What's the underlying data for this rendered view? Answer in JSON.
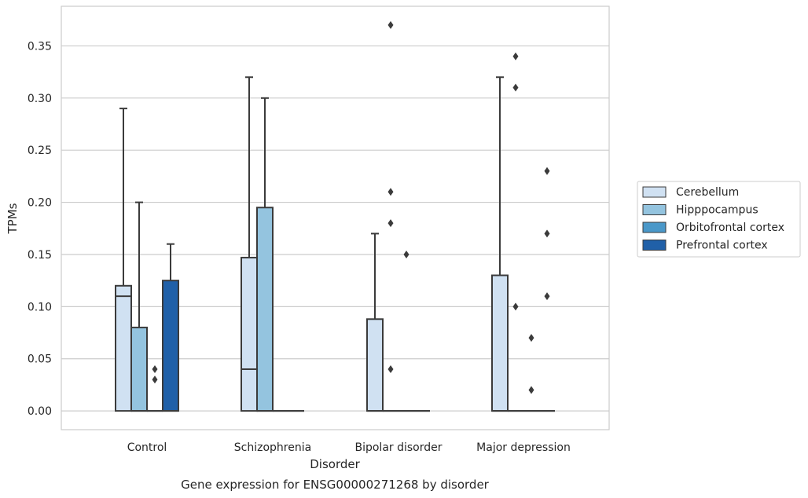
{
  "chart_data": {
    "type": "box",
    "caption": "Gene expression for ENSG00000271268 by disorder",
    "xlabel": "Disorder",
    "ylabel": "TPMs",
    "ylim": [
      -0.018,
      0.388
    ],
    "yticks": [
      0.0,
      0.05,
      0.1,
      0.15,
      0.2,
      0.25,
      0.3,
      0.35
    ],
    "ytick_labels": [
      "0.00",
      "0.05",
      "0.10",
      "0.15",
      "0.20",
      "0.25",
      "0.30",
      "0.35"
    ],
    "grid": "horizontal",
    "legend_position": "right",
    "categories": [
      "Control",
      "Schizophrenia",
      "Bipolar disorder",
      "Major depression"
    ],
    "series": [
      {
        "name": "Cerebellum",
        "color": "#d0e1f2",
        "boxes": [
          {
            "category": "Control",
            "q1": 0.0,
            "median": 0.11,
            "q3": 0.12,
            "whisker_low": 0.0,
            "whisker_high": 0.29,
            "outliers": []
          },
          {
            "category": "Schizophrenia",
            "q1": 0.0,
            "median": 0.04,
            "q3": 0.147,
            "whisker_low": 0.0,
            "whisker_high": 0.32,
            "outliers": []
          },
          {
            "category": "Bipolar disorder",
            "q1": 0.0,
            "median": 0.0,
            "q3": 0.088,
            "whisker_low": 0.0,
            "whisker_high": 0.17,
            "outliers": []
          },
          {
            "category": "Major depression",
            "q1": 0.0,
            "median": 0.0,
            "q3": 0.13,
            "whisker_low": 0.0,
            "whisker_high": 0.32,
            "outliers": []
          }
        ]
      },
      {
        "name": "Hipppocampus",
        "color": "#94c4df",
        "boxes": [
          {
            "category": "Control",
            "q1": 0.0,
            "median": 0.0,
            "q3": 0.08,
            "whisker_low": 0.0,
            "whisker_high": 0.2,
            "outliers": []
          },
          {
            "category": "Schizophrenia",
            "q1": 0.0,
            "median": 0.0,
            "q3": 0.195,
            "whisker_low": 0.0,
            "whisker_high": 0.3,
            "outliers": []
          },
          {
            "category": "Bipolar disorder",
            "q1": 0.0,
            "median": 0.0,
            "q3": 0.0,
            "whisker_low": 0.0,
            "whisker_high": 0.0,
            "outliers": [
              0.37,
              0.21,
              0.18,
              0.04
            ]
          },
          {
            "category": "Major depression",
            "q1": 0.0,
            "median": 0.0,
            "q3": 0.0,
            "whisker_low": 0.0,
            "whisker_high": 0.0,
            "outliers": [
              0.34,
              0.31,
              0.1
            ]
          }
        ]
      },
      {
        "name": "Orbitofrontal cortex",
        "color": "#4a98c9",
        "boxes": [
          {
            "category": "Control",
            "q1": 0.0,
            "median": 0.0,
            "q3": 0.0,
            "whisker_low": 0.0,
            "whisker_high": 0.0,
            "outliers": [
              0.04,
              0.03
            ]
          },
          {
            "category": "Schizophrenia",
            "q1": 0.0,
            "median": 0.0,
            "q3": 0.0,
            "whisker_low": 0.0,
            "whisker_high": 0.0,
            "outliers": []
          },
          {
            "category": "Bipolar disorder",
            "q1": 0.0,
            "median": 0.0,
            "q3": 0.0,
            "whisker_low": 0.0,
            "whisker_high": 0.0,
            "outliers": [
              0.15
            ]
          },
          {
            "category": "Major depression",
            "q1": 0.0,
            "median": 0.0,
            "q3": 0.0,
            "whisker_low": 0.0,
            "whisker_high": 0.0,
            "outliers": [
              0.07,
              0.02
            ]
          }
        ]
      },
      {
        "name": "Prefrontal cortex",
        "color": "#2060a8",
        "boxes": [
          {
            "category": "Control",
            "q1": 0.0,
            "median": 0.0,
            "q3": 0.125,
            "whisker_low": 0.0,
            "whisker_high": 0.16,
            "outliers": []
          },
          {
            "category": "Schizophrenia",
            "q1": 0.0,
            "median": 0.0,
            "q3": 0.0,
            "whisker_low": 0.0,
            "whisker_high": 0.0,
            "outliers": []
          },
          {
            "category": "Bipolar disorder",
            "q1": 0.0,
            "median": 0.0,
            "q3": 0.0,
            "whisker_low": 0.0,
            "whisker_high": 0.0,
            "outliers": []
          },
          {
            "category": "Major depression",
            "q1": 0.0,
            "median": 0.0,
            "q3": 0.0,
            "whisker_low": 0.0,
            "whisker_high": 0.0,
            "outliers": [
              0.23,
              0.17,
              0.11
            ]
          }
        ]
      }
    ]
  }
}
